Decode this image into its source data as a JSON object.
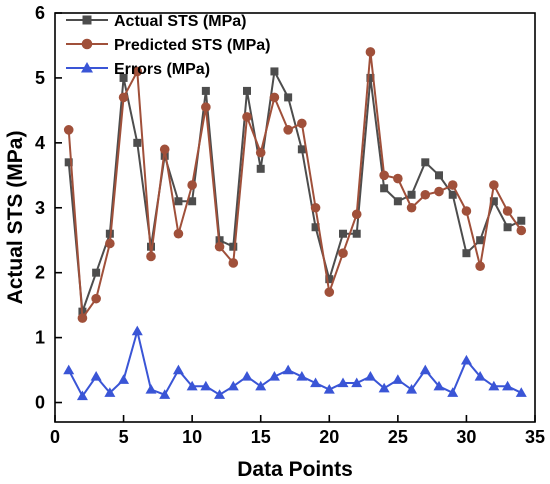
{
  "chart_data": {
    "type": "line",
    "xlabel": "Data Points",
    "ylabel": "Actual STS (MPa)",
    "xlim": [
      0,
      35
    ],
    "ylim": [
      -0.3,
      6
    ],
    "xticks": [
      0,
      5,
      10,
      15,
      20,
      25,
      30,
      35
    ],
    "yticks": [
      0,
      1,
      2,
      3,
      4,
      5,
      6
    ],
    "legend_position": "top-left",
    "grid": false,
    "x": [
      1,
      2,
      3,
      4,
      5,
      6,
      7,
      8,
      9,
      10,
      11,
      12,
      13,
      14,
      15,
      16,
      17,
      18,
      19,
      20,
      21,
      22,
      23,
      24,
      25,
      26,
      27,
      28,
      29,
      30,
      31,
      32,
      33,
      34
    ],
    "series": [
      {
        "name": "Actual STS (MPa)",
        "color": "#4d4d4d",
        "marker": "square",
        "values": [
          3.7,
          1.4,
          2.0,
          2.6,
          5.0,
          4.0,
          2.4,
          3.8,
          3.1,
          3.1,
          4.8,
          2.5,
          2.4,
          4.8,
          3.6,
          5.1,
          4.7,
          3.9,
          2.7,
          1.9,
          2.6,
          2.6,
          5.0,
          3.3,
          3.1,
          3.2,
          3.7,
          3.5,
          3.2,
          2.3,
          2.5,
          3.1,
          2.7,
          2.8
        ]
      },
      {
        "name": "Predicted STS (MPa)",
        "color": "#a0503a",
        "marker": "circle",
        "values": [
          4.2,
          1.3,
          1.6,
          2.45,
          4.7,
          5.1,
          2.25,
          3.9,
          2.6,
          3.35,
          4.55,
          2.4,
          2.15,
          4.4,
          3.85,
          4.7,
          4.2,
          4.3,
          3.0,
          1.7,
          2.3,
          2.9,
          5.4,
          3.5,
          3.45,
          3.0,
          3.2,
          3.25,
          3.35,
          2.95,
          2.1,
          3.35,
          2.95,
          2.65
        ]
      },
      {
        "name": "Errors (MPa)",
        "color": "#3a55d6",
        "marker": "triangle",
        "values": [
          0.5,
          0.1,
          0.4,
          0.15,
          0.35,
          1.1,
          0.2,
          0.12,
          0.5,
          0.25,
          0.25,
          0.12,
          0.25,
          0.4,
          0.25,
          0.4,
          0.5,
          0.4,
          0.3,
          0.2,
          0.3,
          0.3,
          0.4,
          0.22,
          0.35,
          0.2,
          0.5,
          0.25,
          0.15,
          0.65,
          0.4,
          0.25,
          0.25,
          0.15
        ]
      }
    ]
  }
}
